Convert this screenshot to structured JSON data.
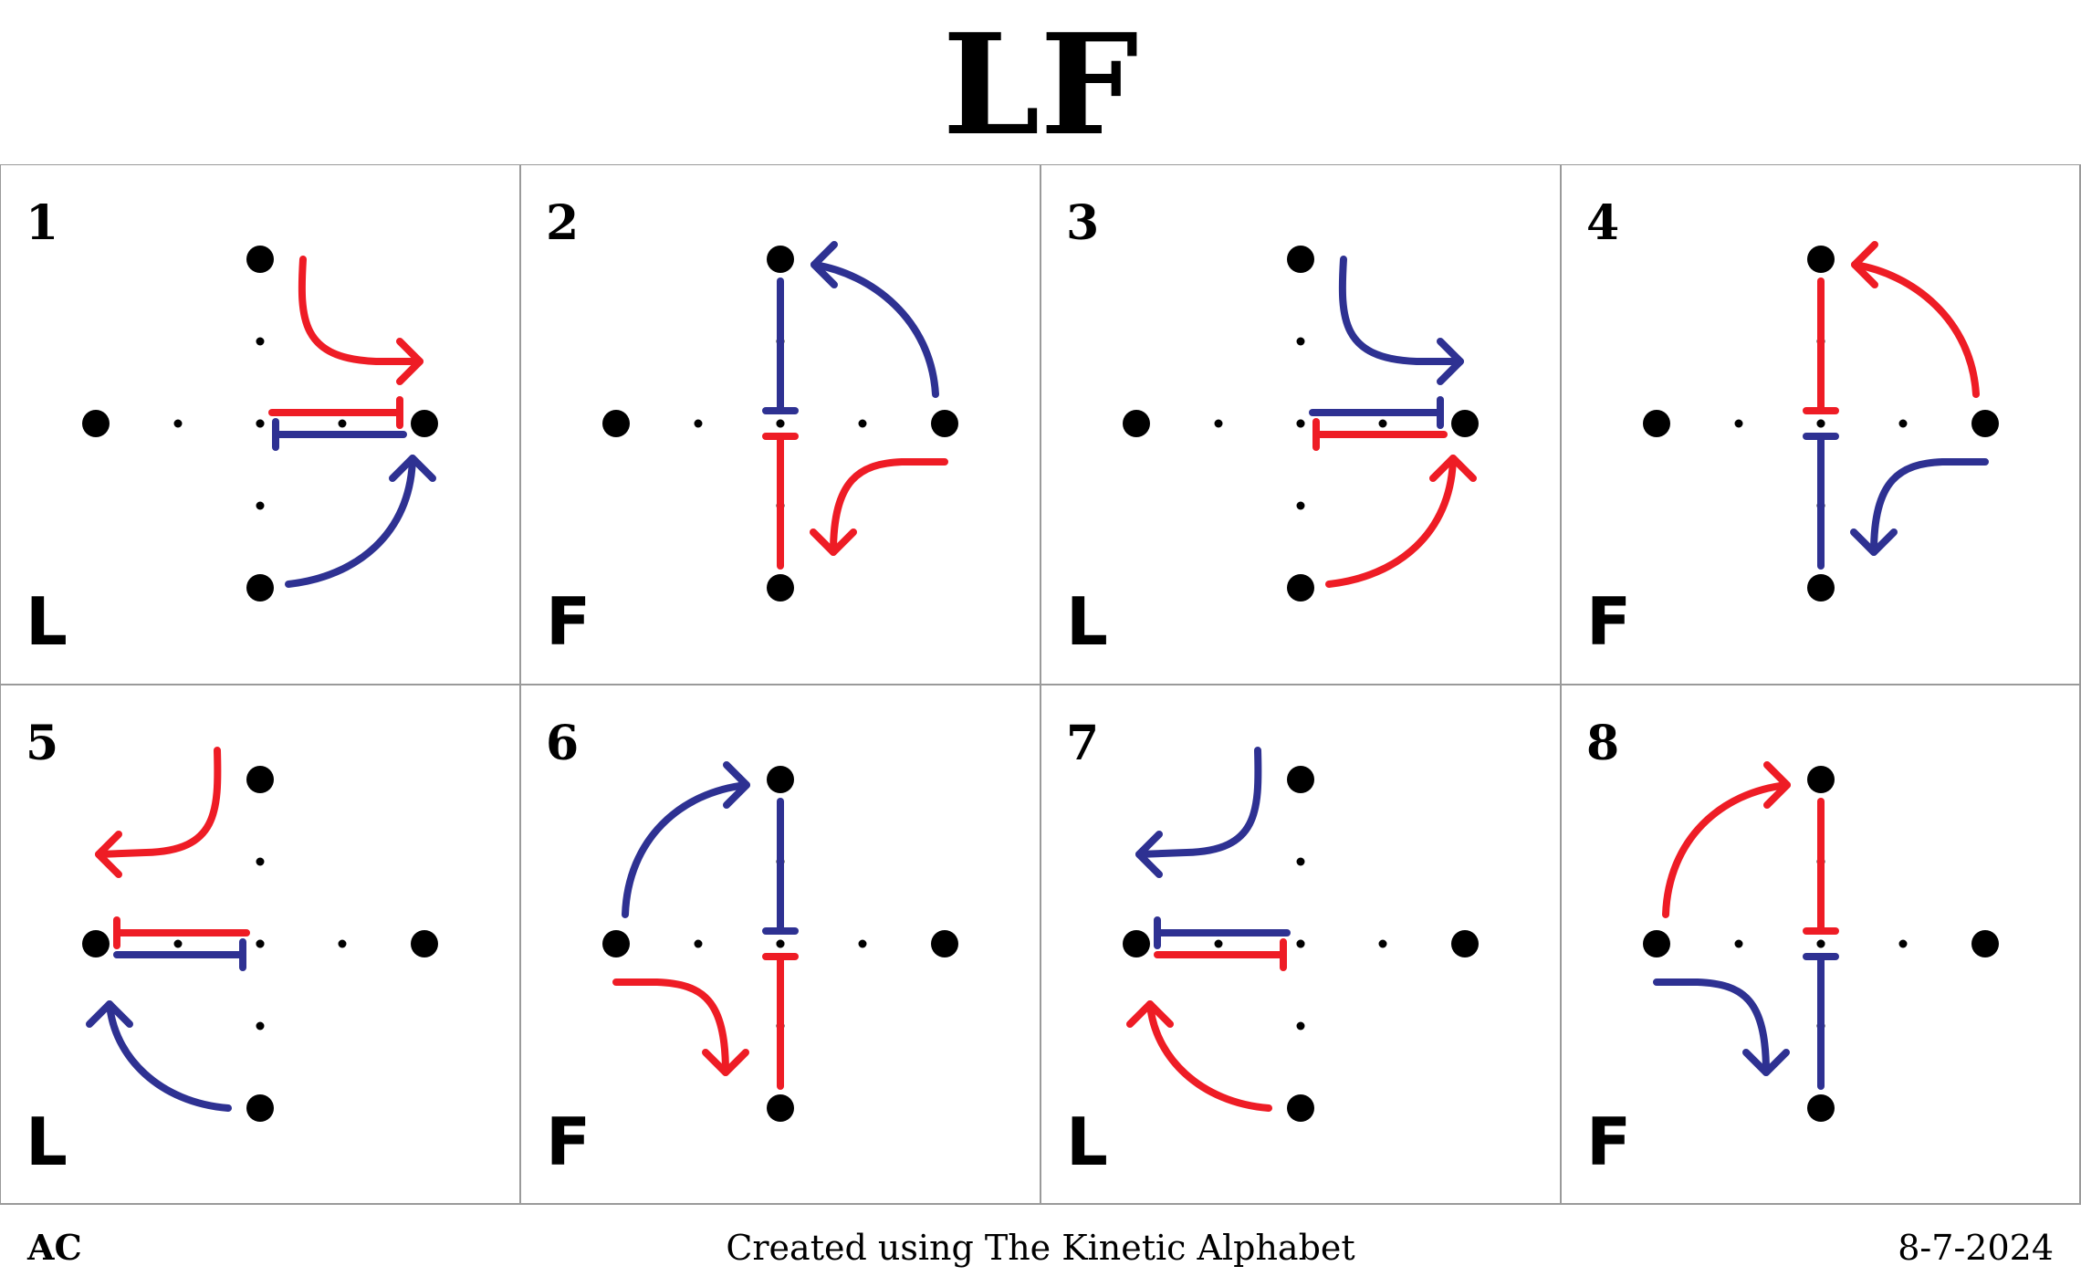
{
  "title": "LF",
  "colors": {
    "red": "#ee1c25",
    "blue": "#2e3192",
    "grid": "#9a9a9a",
    "dot": "#000000"
  },
  "cells": [
    {
      "number": "1",
      "letter": "L",
      "arrows": [
        "red-curve",
        "blue-curve"
      ],
      "hub": "right",
      "near_bar": "blue",
      "far_bar": "red"
    },
    {
      "number": "2",
      "letter": "F",
      "arrows": [
        "blue-curve",
        "red-curve"
      ],
      "hub": "center-vertical",
      "top_stick": "blue",
      "bottom_stick": "red"
    },
    {
      "number": "3",
      "letter": "L",
      "arrows": [
        "blue-curve",
        "red-curve"
      ],
      "hub": "right",
      "near_bar": "red",
      "far_bar": "blue"
    },
    {
      "number": "4",
      "letter": "F",
      "arrows": [
        "red-curve",
        "blue-curve"
      ],
      "hub": "center-vertical",
      "top_stick": "red",
      "bottom_stick": "blue"
    },
    {
      "number": "5",
      "letter": "L",
      "arrows": [
        "red-curve",
        "blue-curve"
      ],
      "hub": "left",
      "near_bar": "blue",
      "far_bar": "red"
    },
    {
      "number": "6",
      "letter": "F",
      "arrows": [
        "blue-curve",
        "red-curve"
      ],
      "hub": "center-vertical",
      "top_stick": "blue",
      "bottom_stick": "red"
    },
    {
      "number": "7",
      "letter": "L",
      "arrows": [
        "blue-curve",
        "red-curve"
      ],
      "hub": "left",
      "near_bar": "red",
      "far_bar": "blue"
    },
    {
      "number": "8",
      "letter": "F",
      "arrows": [
        "red-curve",
        "blue-curve"
      ],
      "hub": "center-vertical",
      "top_stick": "red",
      "bottom_stick": "blue"
    }
  ],
  "footer": {
    "left": "AC",
    "center": "Created using The Kinetic Alphabet",
    "right": "8-7-2024"
  }
}
